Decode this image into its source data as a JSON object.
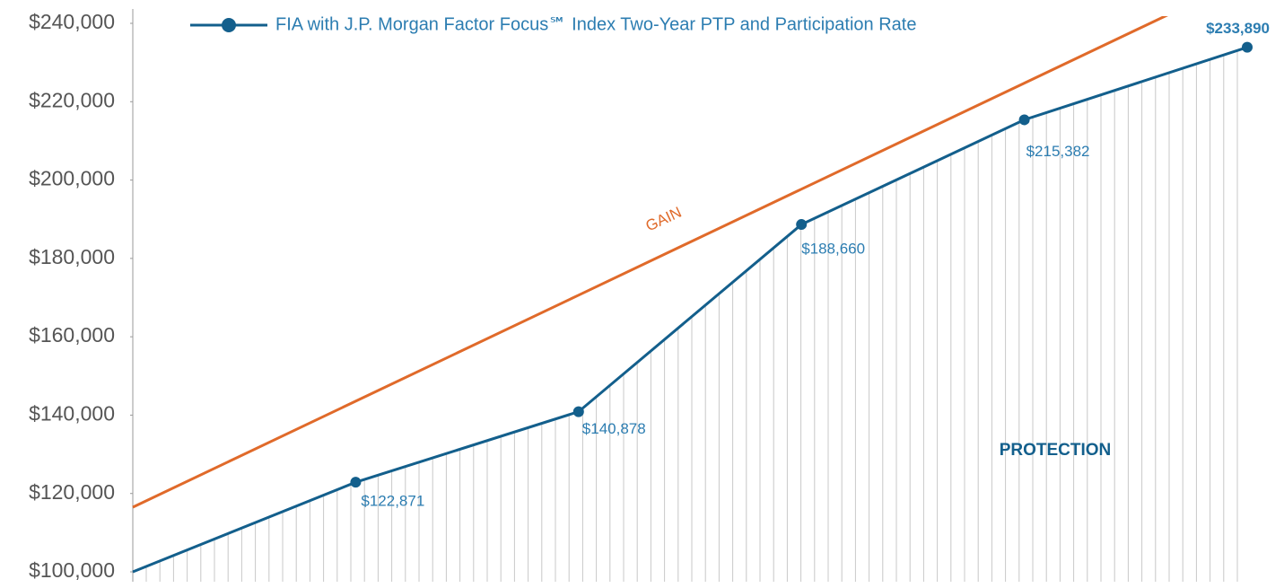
{
  "chart_data": {
    "type": "line",
    "categories": [
      null,
      null,
      null,
      null,
      null,
      null
    ],
    "series": [
      {
        "name": "FIA with J.P. Morgan Factor Focus℠ Index Two-Year PTP and Participation Rate",
        "color": "#135f8c",
        "values": [
          100000,
          122871,
          140878,
          188660,
          215382,
          233890
        ],
        "value_labels": [
          null,
          "$122,871",
          "$140,878",
          "$188,660",
          "$215,382",
          "$233,890"
        ]
      }
    ],
    "gain_line": {
      "label": "GAIN",
      "color": "#e06a2a",
      "values": [
        116500,
        143560,
        170620,
        197680,
        224740,
        251800
      ]
    },
    "protection_label": "PROTECTION",
    "ylim": [
      100000,
      240000
    ],
    "yticks": [
      {
        "value": 100000,
        "label": "$100,000"
      },
      {
        "value": 120000,
        "label": "$120,000"
      },
      {
        "value": 140000,
        "label": "$140,000"
      },
      {
        "value": 160000,
        "label": "$160,000"
      },
      {
        "value": 180000,
        "label": "$180,000"
      },
      {
        "value": 200000,
        "label": "$200,000"
      },
      {
        "value": 220000,
        "label": "$220,000"
      },
      {
        "value": 240000,
        "label": "$240,000"
      }
    ],
    "grid": false,
    "legend": "top"
  }
}
